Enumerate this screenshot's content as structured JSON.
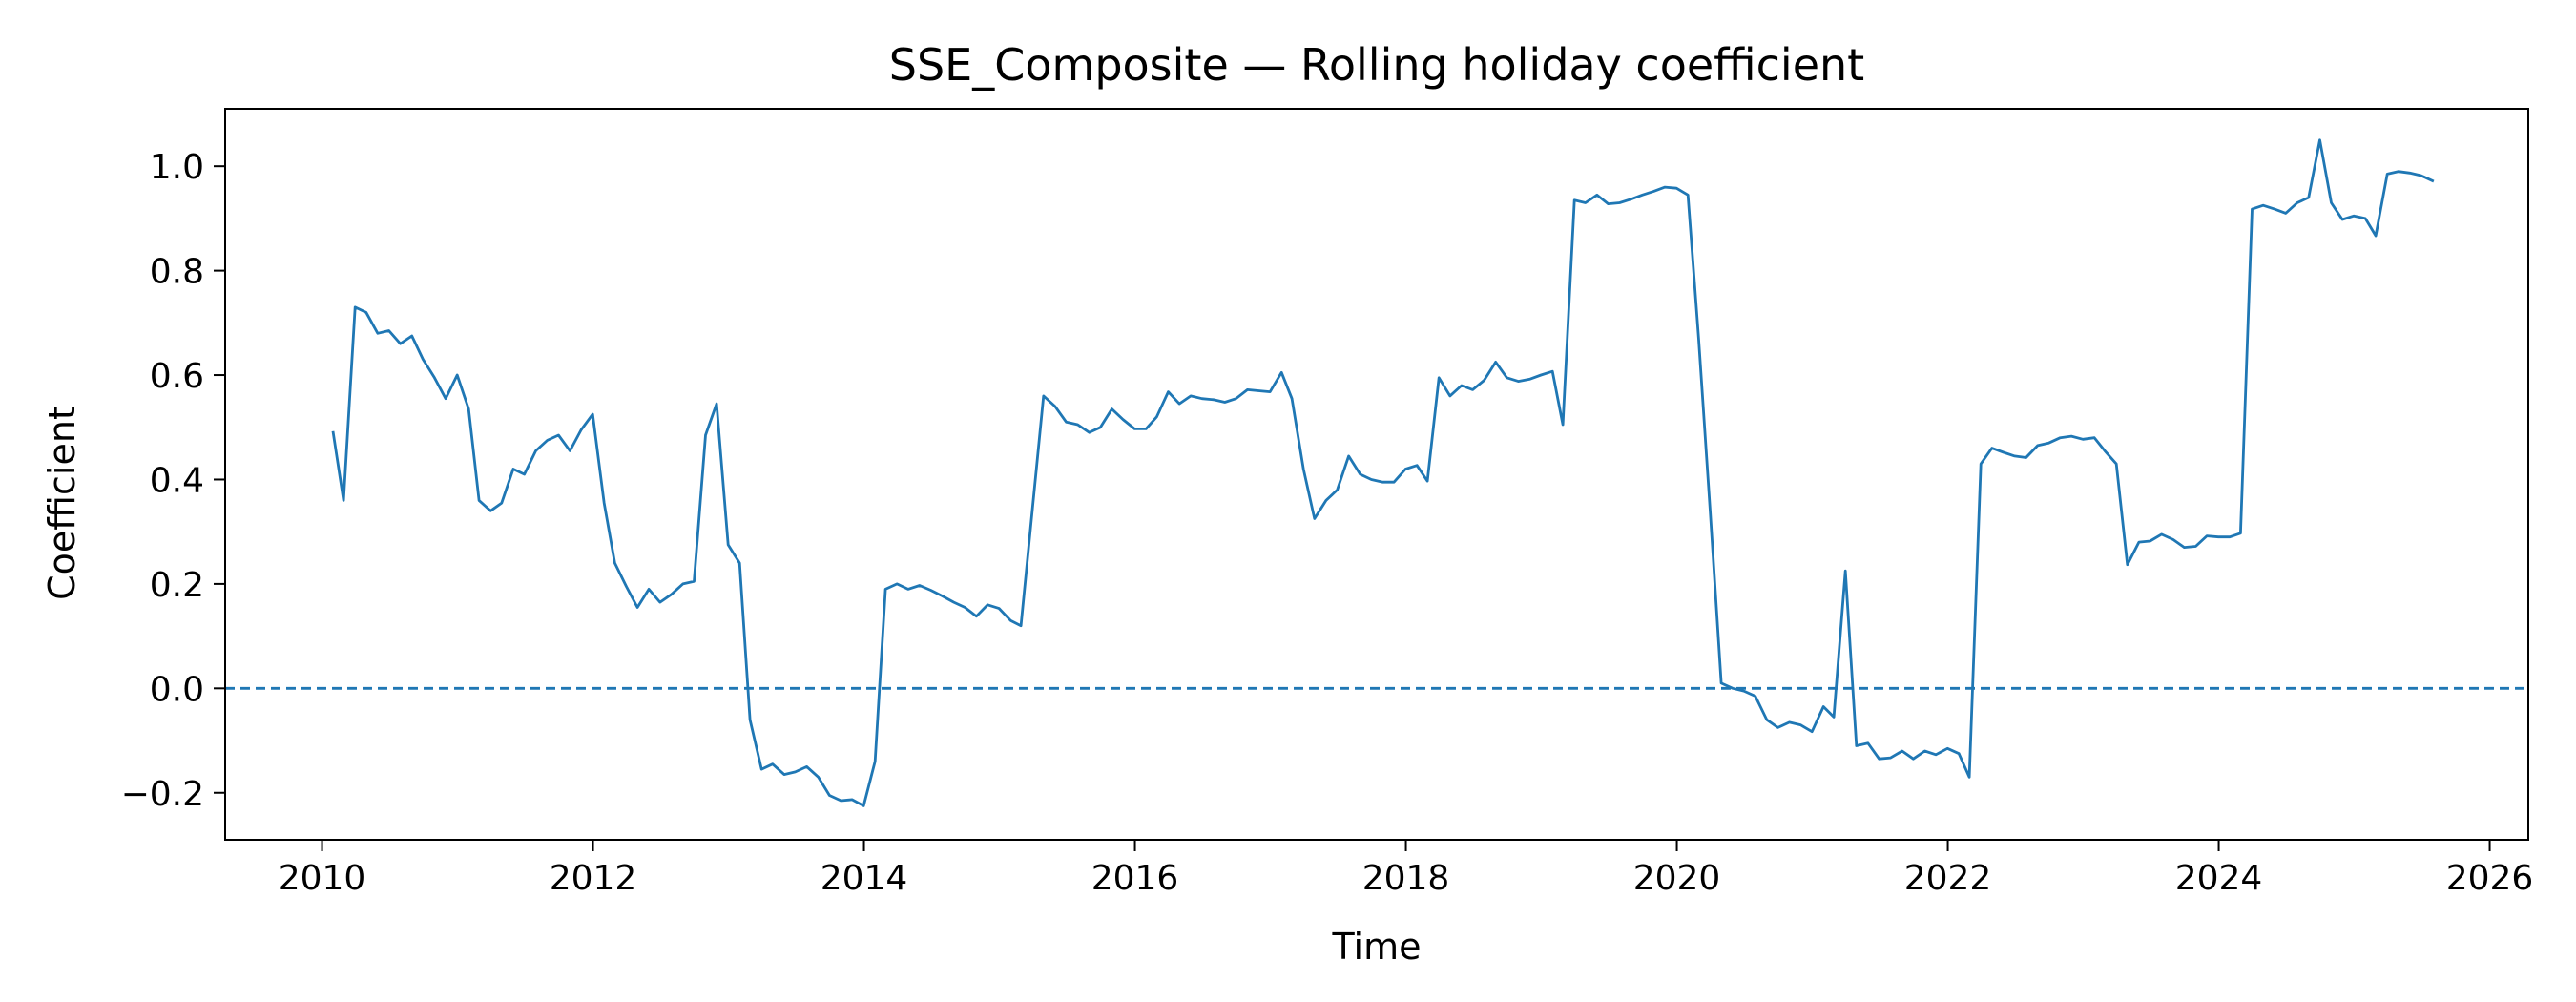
{
  "chart_data": {
    "type": "line",
    "title": "SSE_Composite — Rolling holiday coefficient",
    "xlabel": "Time",
    "ylabel": "Coefficient",
    "xlim": [
      "2009-04-15",
      "2026-04-15"
    ],
    "ylim": [
      -0.29,
      1.11
    ],
    "x_ticks": [
      "2010",
      "2012",
      "2014",
      "2016",
      "2018",
      "2020",
      "2022",
      "2024",
      "2026"
    ],
    "y_ticks": [
      "−0.2",
      "0.0",
      "0.2",
      "0.4",
      "0.6",
      "0.8",
      "1.0"
    ],
    "y_tick_values": [
      -0.2,
      0.0,
      0.2,
      0.4,
      0.6,
      0.8,
      1.0
    ],
    "grid": false,
    "legend": null,
    "reference_line": {
      "y": 0.0,
      "style": "dashed",
      "color": "#1f77b4"
    },
    "series": [
      {
        "color": "#1f77b4",
        "points": [
          [
            "2010-01-31",
            0.49
          ],
          [
            "2010-02-28",
            0.36
          ],
          [
            "2010-03-31",
            0.73
          ],
          [
            "2010-04-30",
            0.72
          ],
          [
            "2010-05-31",
            0.68
          ],
          [
            "2010-06-30",
            0.685
          ],
          [
            "2010-07-31",
            0.66
          ],
          [
            "2010-08-31",
            0.675
          ],
          [
            "2010-09-30",
            0.63
          ],
          [
            "2010-10-31",
            0.595
          ],
          [
            "2010-11-30",
            0.555
          ],
          [
            "2010-12-31",
            0.6
          ],
          [
            "2011-01-31",
            0.535
          ],
          [
            "2011-02-28",
            0.36
          ],
          [
            "2011-03-31",
            0.34
          ],
          [
            "2011-04-30",
            0.355
          ],
          [
            "2011-05-31",
            0.42
          ],
          [
            "2011-06-30",
            0.41
          ],
          [
            "2011-07-31",
            0.455
          ],
          [
            "2011-08-31",
            0.475
          ],
          [
            "2011-09-30",
            0.485
          ],
          [
            "2011-10-31",
            0.455
          ],
          [
            "2011-11-30",
            0.495
          ],
          [
            "2011-12-31",
            0.525
          ],
          [
            "2012-01-31",
            0.355
          ],
          [
            "2012-02-29",
            0.24
          ],
          [
            "2012-03-31",
            0.195
          ],
          [
            "2012-04-30",
            0.155
          ],
          [
            "2012-05-31",
            0.19
          ],
          [
            "2012-06-30",
            0.165
          ],
          [
            "2012-07-31",
            0.18
          ],
          [
            "2012-08-31",
            0.2
          ],
          [
            "2012-09-30",
            0.205
          ],
          [
            "2012-10-31",
            0.485
          ],
          [
            "2012-11-30",
            0.545
          ],
          [
            "2012-12-31",
            0.275
          ],
          [
            "2013-01-31",
            0.24
          ],
          [
            "2013-02-28",
            -0.06
          ],
          [
            "2013-03-31",
            -0.155
          ],
          [
            "2013-04-30",
            -0.145
          ],
          [
            "2013-05-31",
            -0.165
          ],
          [
            "2013-06-30",
            -0.16
          ],
          [
            "2013-07-31",
            -0.15
          ],
          [
            "2013-08-31",
            -0.17
          ],
          [
            "2013-09-30",
            -0.205
          ],
          [
            "2013-10-31",
            -0.215
          ],
          [
            "2013-11-30",
            -0.213
          ],
          [
            "2013-12-31",
            -0.225
          ],
          [
            "2014-01-31",
            -0.14
          ],
          [
            "2014-02-28",
            0.19
          ],
          [
            "2014-03-31",
            0.2
          ],
          [
            "2014-04-30",
            0.19
          ],
          [
            "2014-05-31",
            0.197
          ],
          [
            "2014-06-30",
            0.188
          ],
          [
            "2014-07-31",
            0.177
          ],
          [
            "2014-08-31",
            0.165
          ],
          [
            "2014-09-30",
            0.155
          ],
          [
            "2014-10-31",
            0.138
          ],
          [
            "2014-11-30",
            0.16
          ],
          [
            "2014-12-31",
            0.153
          ],
          [
            "2015-01-31",
            0.13
          ],
          [
            "2015-02-28",
            0.12
          ],
          [
            "2015-03-31",
            0.345
          ],
          [
            "2015-04-30",
            0.56
          ],
          [
            "2015-05-31",
            0.54
          ],
          [
            "2015-06-30",
            0.51
          ],
          [
            "2015-07-31",
            0.505
          ],
          [
            "2015-08-31",
            0.49
          ],
          [
            "2015-09-30",
            0.5
          ],
          [
            "2015-10-31",
            0.535
          ],
          [
            "2015-11-30",
            0.515
          ],
          [
            "2015-12-31",
            0.497
          ],
          [
            "2016-01-31",
            0.497
          ],
          [
            "2016-02-29",
            0.52
          ],
          [
            "2016-03-31",
            0.568
          ],
          [
            "2016-04-30",
            0.545
          ],
          [
            "2016-05-31",
            0.56
          ],
          [
            "2016-06-30",
            0.555
          ],
          [
            "2016-07-31",
            0.553
          ],
          [
            "2016-08-31",
            0.548
          ],
          [
            "2016-09-30",
            0.555
          ],
          [
            "2016-10-31",
            0.572
          ],
          [
            "2016-11-30",
            0.57
          ],
          [
            "2016-12-31",
            0.568
          ],
          [
            "2017-01-31",
            0.605
          ],
          [
            "2017-02-28",
            0.555
          ],
          [
            "2017-03-31",
            0.42
          ],
          [
            "2017-04-30",
            0.325
          ],
          [
            "2017-05-31",
            0.36
          ],
          [
            "2017-06-30",
            0.38
          ],
          [
            "2017-07-31",
            0.445
          ],
          [
            "2017-08-31",
            0.41
          ],
          [
            "2017-09-30",
            0.4
          ],
          [
            "2017-10-31",
            0.395
          ],
          [
            "2017-11-30",
            0.395
          ],
          [
            "2017-12-31",
            0.42
          ],
          [
            "2018-01-31",
            0.427
          ],
          [
            "2018-02-28",
            0.397
          ],
          [
            "2018-03-31",
            0.595
          ],
          [
            "2018-04-30",
            0.56
          ],
          [
            "2018-05-31",
            0.58
          ],
          [
            "2018-06-30",
            0.572
          ],
          [
            "2018-07-31",
            0.59
          ],
          [
            "2018-08-31",
            0.625
          ],
          [
            "2018-09-30",
            0.595
          ],
          [
            "2018-10-31",
            0.588
          ],
          [
            "2018-11-30",
            0.592
          ],
          [
            "2018-12-31",
            0.6
          ],
          [
            "2019-01-31",
            0.607
          ],
          [
            "2019-02-28",
            0.505
          ],
          [
            "2019-03-31",
            0.935
          ],
          [
            "2019-04-30",
            0.93
          ],
          [
            "2019-05-31",
            0.945
          ],
          [
            "2019-06-30",
            0.928
          ],
          [
            "2019-07-31",
            0.93
          ],
          [
            "2019-08-31",
            0.937
          ],
          [
            "2019-09-30",
            0.945
          ],
          [
            "2019-10-31",
            0.952
          ],
          [
            "2019-11-30",
            0.96
          ],
          [
            "2019-12-31",
            0.958
          ],
          [
            "2020-01-31",
            0.945
          ],
          [
            "2020-02-29",
            0.67
          ],
          [
            "2020-03-31",
            0.34
          ],
          [
            "2020-04-30",
            0.01
          ],
          [
            "2020-05-31",
            0.0
          ],
          [
            "2020-06-30",
            -0.005
          ],
          [
            "2020-07-31",
            -0.015
          ],
          [
            "2020-08-31",
            -0.06
          ],
          [
            "2020-09-30",
            -0.075
          ],
          [
            "2020-10-31",
            -0.065
          ],
          [
            "2020-11-30",
            -0.07
          ],
          [
            "2020-12-31",
            -0.083
          ],
          [
            "2021-01-31",
            -0.035
          ],
          [
            "2021-02-28",
            -0.055
          ],
          [
            "2021-03-31",
            0.225
          ],
          [
            "2021-04-30",
            -0.11
          ],
          [
            "2021-05-31",
            -0.105
          ],
          [
            "2021-06-30",
            -0.135
          ],
          [
            "2021-07-31",
            -0.133
          ],
          [
            "2021-08-31",
            -0.12
          ],
          [
            "2021-09-30",
            -0.135
          ],
          [
            "2021-10-31",
            -0.12
          ],
          [
            "2021-11-30",
            -0.127
          ],
          [
            "2021-12-31",
            -0.115
          ],
          [
            "2022-01-31",
            -0.125
          ],
          [
            "2022-02-28",
            -0.17
          ],
          [
            "2022-03-31",
            0.43
          ],
          [
            "2022-04-30",
            0.46
          ],
          [
            "2022-05-31",
            0.452
          ],
          [
            "2022-06-30",
            0.445
          ],
          [
            "2022-07-31",
            0.442
          ],
          [
            "2022-08-31",
            0.465
          ],
          [
            "2022-09-30",
            0.47
          ],
          [
            "2022-10-31",
            0.48
          ],
          [
            "2022-11-30",
            0.483
          ],
          [
            "2022-12-31",
            0.477
          ],
          [
            "2023-01-31",
            0.48
          ],
          [
            "2023-02-28",
            0.455
          ],
          [
            "2023-03-31",
            0.43
          ],
          [
            "2023-04-30",
            0.237
          ],
          [
            "2023-05-31",
            0.28
          ],
          [
            "2023-06-30",
            0.282
          ],
          [
            "2023-07-31",
            0.295
          ],
          [
            "2023-08-31",
            0.285
          ],
          [
            "2023-09-30",
            0.27
          ],
          [
            "2023-10-31",
            0.272
          ],
          [
            "2023-11-30",
            0.292
          ],
          [
            "2023-12-31",
            0.29
          ],
          [
            "2024-01-31",
            0.29
          ],
          [
            "2024-02-29",
            0.297
          ],
          [
            "2024-03-31",
            0.918
          ],
          [
            "2024-04-30",
            0.925
          ],
          [
            "2024-05-31",
            0.918
          ],
          [
            "2024-06-30",
            0.91
          ],
          [
            "2024-07-31",
            0.93
          ],
          [
            "2024-08-31",
            0.94
          ],
          [
            "2024-09-30",
            1.05
          ],
          [
            "2024-10-31",
            0.93
          ],
          [
            "2024-11-30",
            0.898
          ],
          [
            "2024-12-31",
            0.905
          ],
          [
            "2025-01-31",
            0.9
          ],
          [
            "2025-02-28",
            0.867
          ],
          [
            "2025-03-31",
            0.985
          ],
          [
            "2025-04-30",
            0.99
          ],
          [
            "2025-05-31",
            0.987
          ],
          [
            "2025-06-30",
            0.982
          ],
          [
            "2025-07-31",
            0.972
          ]
        ]
      }
    ]
  }
}
